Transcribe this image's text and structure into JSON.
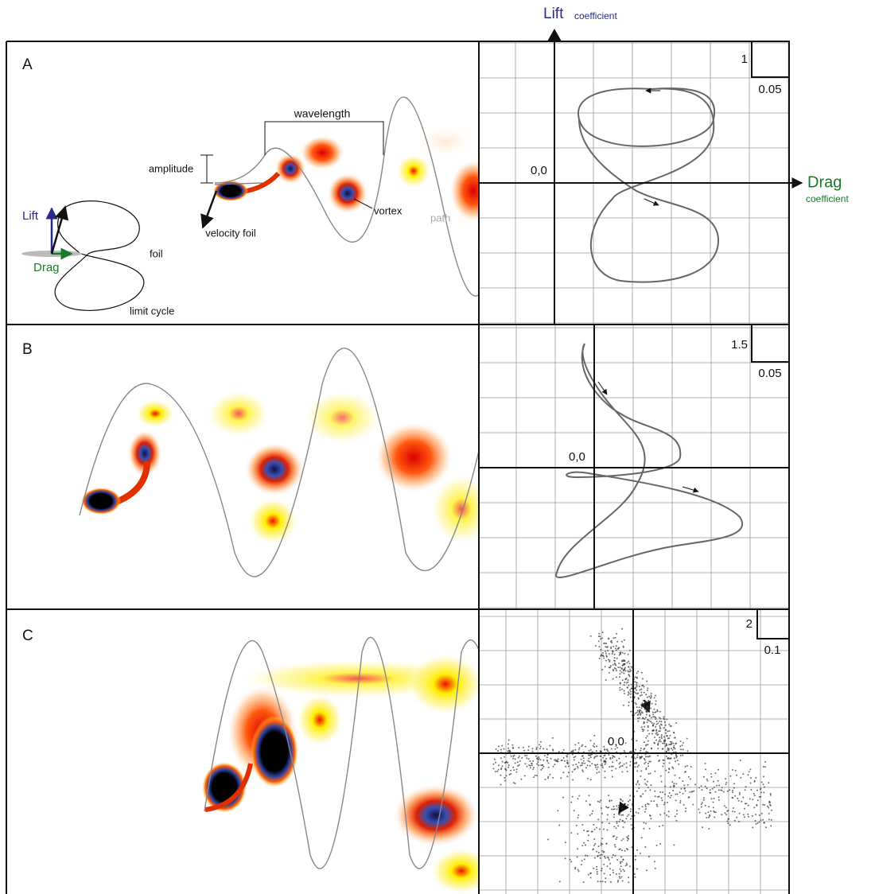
{
  "axes": {
    "lift": {
      "label": "Lift",
      "unit": "coefficient"
    },
    "drag": {
      "label": "Drag",
      "unit": "coefficient"
    }
  },
  "panels": [
    {
      "label": "A",
      "annotations": {
        "wavelength": "wavelength",
        "amplitude": "amplitude",
        "vortex": "vortex",
        "path": "path",
        "velocity": "velocity foil",
        "lift": "Lift",
        "drag": "Drag",
        "foil": "foil",
        "cycle": "limit cycle"
      },
      "phase_plot": {
        "origin": "0,0",
        "lift_scale": "1",
        "drag_scale": "0.05"
      }
    },
    {
      "label": "B",
      "phase_plot": {
        "origin": "0,0",
        "lift_scale": "1.5",
        "drag_scale": "0.05"
      }
    },
    {
      "label": "C",
      "phase_plot": {
        "origin": "0,0",
        "lift_scale": "2",
        "drag_scale": "0.1"
      }
    }
  ]
}
